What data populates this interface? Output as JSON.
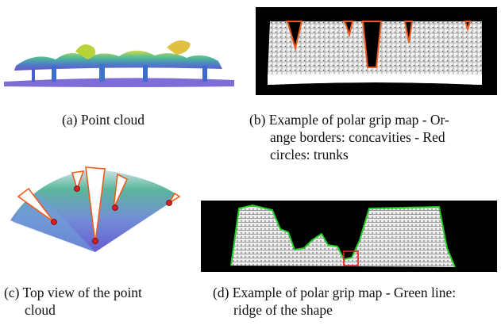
{
  "figure": {
    "panels": [
      {
        "label": "(a)",
        "caption": "Point cloud"
      },
      {
        "label": "(b)",
        "caption_lines": [
          "Example of polar grip map - Or-",
          "ange borders: concavities - Red",
          "circles: trunks"
        ]
      },
      {
        "label": "(c)",
        "caption_lines": [
          "Top view of the point",
          "cloud"
        ]
      },
      {
        "label": "(d)",
        "caption_lines": [
          "Example of polar grip map - Green line:",
          "ridge of the shape"
        ]
      }
    ]
  },
  "colors": {
    "concavity_border": "#f05a1e",
    "trunk_marker": "#e02020",
    "ridge_line": "#22cc22",
    "map_background": "#000000"
  }
}
